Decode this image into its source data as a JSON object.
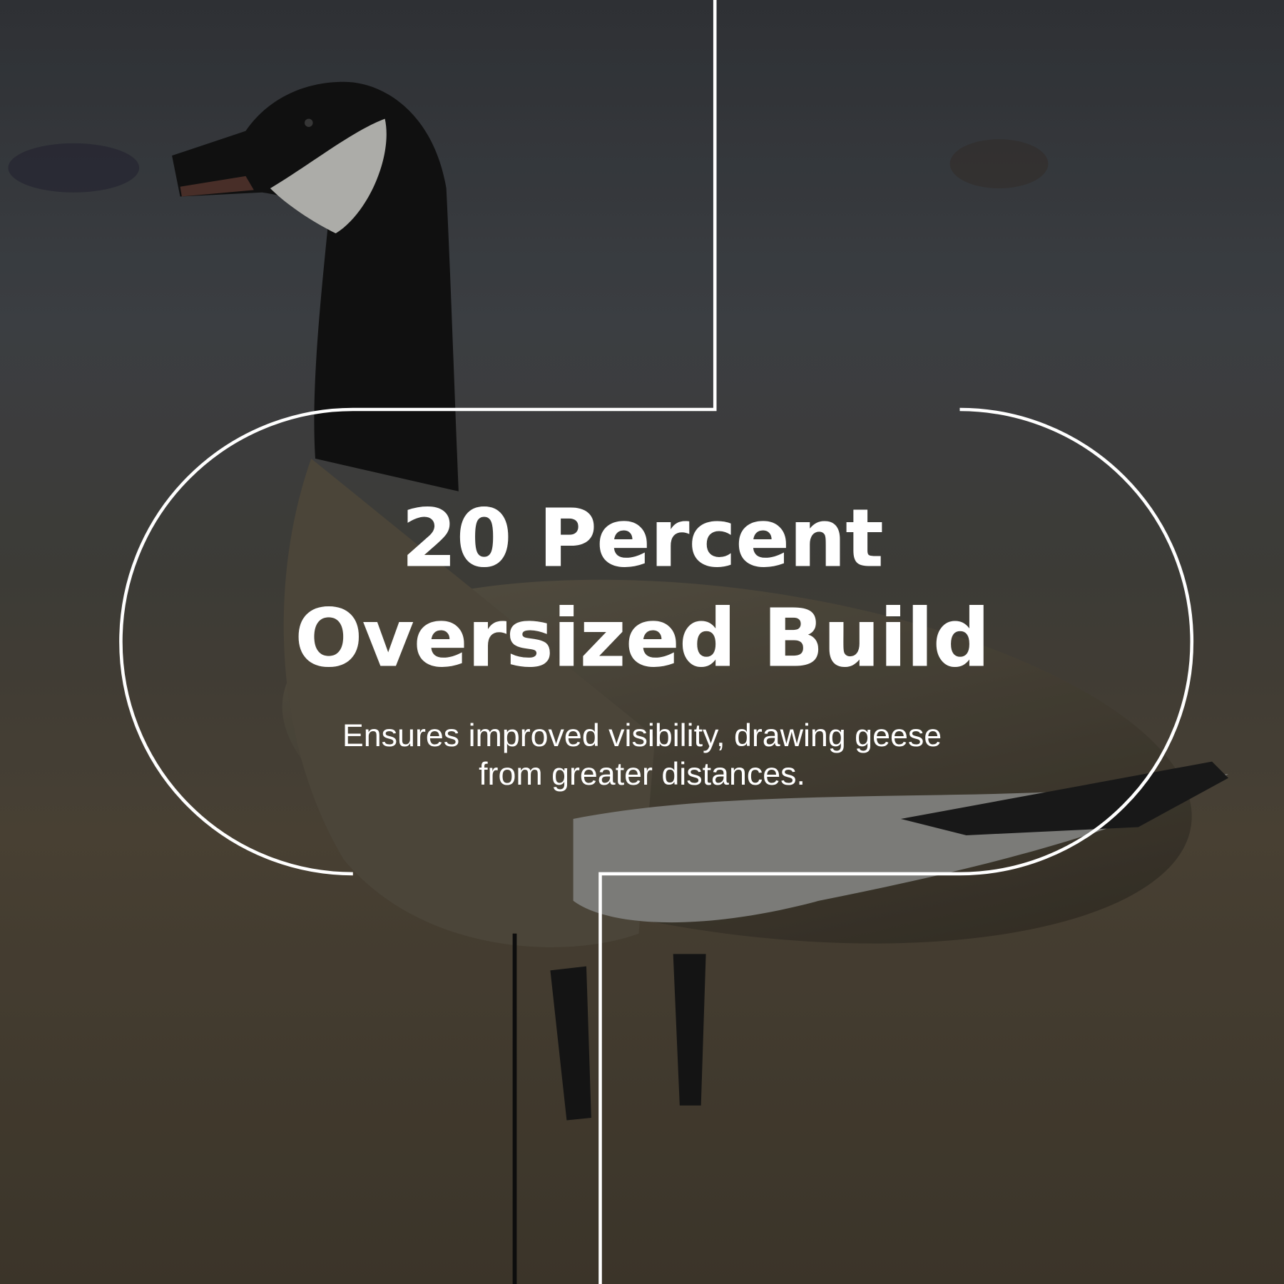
{
  "headline": {
    "line1": "20 Percent",
    "line2": "Oversized Build"
  },
  "description": {
    "line1": "Ensures improved visibility, drawing geese",
    "line2": "from greater distances."
  },
  "colors": {
    "text": "#ffffff",
    "outline": "#ffffff",
    "overlay": "#000000"
  },
  "background_image": "goose-decoy-in-grass-photo"
}
